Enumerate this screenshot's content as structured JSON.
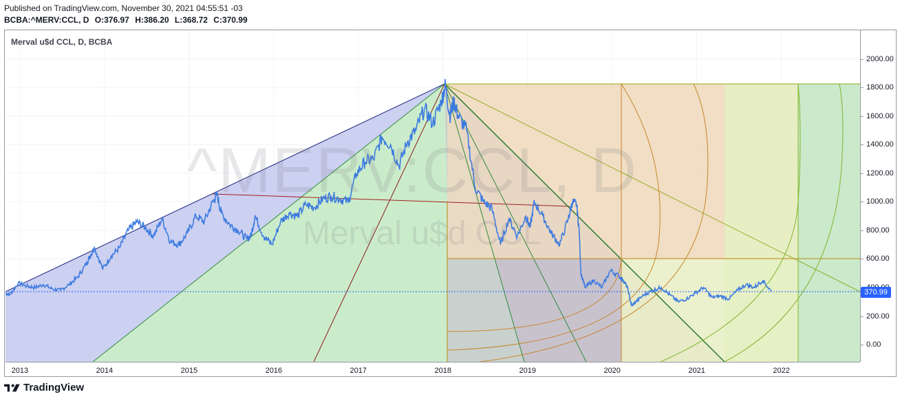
{
  "header": {
    "published": "Published on TradingView.com, November 30, 2021 04:55:51 -03",
    "symbol": "BCBA:^MERV:CCL, D",
    "open": "O:376.97",
    "high": "H:386.20",
    "low": "L:368.72",
    "close": "C:370.99"
  },
  "legend": "Merval u$d CCL, D, BCBA",
  "watermark": {
    "symbol": "^MERV:CCL, D",
    "name": "Merval u$d CCL"
  },
  "price_tag": "370.99",
  "brand": "TradingView",
  "colors": {
    "line": "#3d7be0",
    "fan_blue": "#c9cdf0",
    "fan_green": "#c8ebc8",
    "fan_orange": "#f0dcc0",
    "arc_orange": "#c8862a",
    "arc_green": "#7fb52b",
    "price_tag": "#2962ff"
  },
  "chart_data": {
    "type": "line",
    "xlabel": "",
    "ylabel": "",
    "ylim": [
      -120,
      2200
    ],
    "xlim": [
      2012.85,
      2022.95
    ],
    "grid": true,
    "x_ticks": [
      "2013",
      "2014",
      "2015",
      "2016",
      "2017",
      "2018",
      "2019",
      "2020",
      "2021",
      "2022"
    ],
    "y_ticks": [
      "0.00",
      "200.00",
      "400.00",
      "600.00",
      "800.00",
      "1000.00",
      "1200.00",
      "1400.00",
      "1600.00",
      "1800.00",
      "2000.00"
    ],
    "last_value": 370.99,
    "series": [
      {
        "x": [
          2012.85,
          2012.9,
          2013.0,
          2013.1,
          2013.2,
          2013.3,
          2013.4,
          2013.5,
          2013.6,
          2013.7,
          2013.8,
          2013.85,
          2013.9,
          2014.0,
          2014.1,
          2014.2,
          2014.3,
          2014.4,
          2014.5,
          2014.6,
          2014.7,
          2014.8,
          2014.9,
          2015.0,
          2015.1,
          2015.2,
          2015.3,
          2015.35,
          2015.4,
          2015.5,
          2015.6,
          2015.7,
          2015.75,
          2015.8,
          2015.9,
          2016.0,
          2016.1,
          2016.2,
          2016.3,
          2016.4,
          2016.5,
          2016.6,
          2016.7,
          2016.8,
          2016.9,
          2017.0,
          2017.1,
          2017.2,
          2017.3,
          2017.4,
          2017.5,
          2017.6,
          2017.7,
          2017.8,
          2017.9,
          2018.0,
          2018.05,
          2018.1,
          2018.15,
          2018.2,
          2018.3,
          2018.4,
          2018.5,
          2018.6,
          2018.7,
          2018.8,
          2018.9,
          2019.0,
          2019.05,
          2019.1,
          2019.2,
          2019.3,
          2019.4,
          2019.5,
          2019.55,
          2019.6,
          2019.63,
          2019.65,
          2019.7,
          2019.8,
          2019.9,
          2020.0,
          2020.1,
          2020.15,
          2020.2,
          2020.25,
          2020.3,
          2020.4,
          2020.5,
          2020.6,
          2020.7,
          2020.8,
          2020.9,
          2021.0,
          2021.1,
          2021.2,
          2021.3,
          2021.4,
          2021.5,
          2021.6,
          2021.7,
          2021.8,
          2021.9
        ],
        "values": [
          360,
          350,
          430,
          410,
          400,
          420,
          390,
          380,
          420,
          470,
          560,
          620,
          680,
          530,
          620,
          680,
          800,
          860,
          820,
          760,
          880,
          720,
          700,
          780,
          900,
          860,
          1000,
          1050,
          920,
          840,
          800,
          740,
          760,
          900,
          760,
          700,
          860,
          920,
          900,
          980,
          960,
          1020,
          1040,
          1020,
          1000,
          1200,
          1280,
          1300,
          1450,
          1400,
          1250,
          1420,
          1500,
          1650,
          1550,
          1700,
          1820,
          1600,
          1700,
          1600,
          1500,
          1100,
          1000,
          950,
          700,
          880,
          760,
          900,
          820,
          1000,
          900,
          780,
          700,
          880,
          1000,
          980,
          800,
          500,
          400,
          450,
          400,
          520,
          480,
          450,
          400,
          270,
          300,
          350,
          380,
          400,
          350,
          300,
          320,
          360,
          400,
          330,
          340,
          320,
          380,
          420,
          400,
          450,
          371
        ]
      }
    ]
  }
}
